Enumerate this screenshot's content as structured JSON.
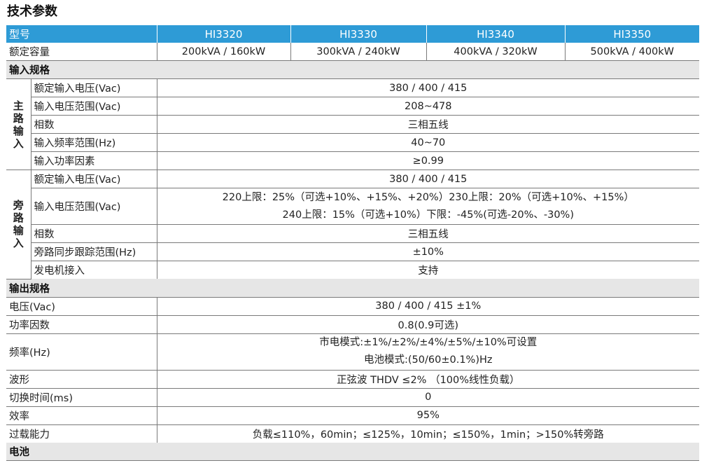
{
  "title": "技术参数",
  "header": {
    "label": "型号",
    "models": [
      "HI3320",
      "HI3330",
      "HI3340",
      "HI3350"
    ]
  },
  "capacity": {
    "label": "额定容量",
    "values": [
      "200kVA / 160kW",
      "300kVA / 240kW",
      "400kVA / 320kW",
      "500kVA / 400kW"
    ]
  },
  "input": {
    "section": "输入规格",
    "main": {
      "group": "主路输入",
      "rows": [
        {
          "label": "额定输入电压(Vac)",
          "value": "380 / 400 / 415"
        },
        {
          "label": "输入电压范围(Vac)",
          "value": "208~478"
        },
        {
          "label": "相数",
          "value": "三相五线"
        },
        {
          "label": "输入频率范围(Hz)",
          "value": "40~70"
        },
        {
          "label": "输入功率因素",
          "value": "≥0.99"
        }
      ]
    },
    "bypass": {
      "group": "旁路输入",
      "rated": {
        "label": "额定输入电压(Vac)",
        "value": "380 / 400 / 415"
      },
      "range": {
        "label": "输入电压范围(Vac)",
        "line1": "220上限：25%（可选+10%、+15%、+20%）230上限：20%（可选+10%、+15%）",
        "line2": "240上限：15%（可选+10%）下限：-45%(可选-20%、-30%)"
      },
      "phase": {
        "label": "相数",
        "value": "三相五线"
      },
      "sync": {
        "label": "旁路同步跟踪范围(Hz)",
        "value": "±10%"
      },
      "generator": {
        "label": "发电机接入",
        "value": "支持"
      }
    }
  },
  "output": {
    "section": "输出规格",
    "voltage": {
      "label": "电压(Vac)",
      "value": "380 / 400 / 415 ±1%"
    },
    "pf": {
      "label": "功率因数",
      "value": "0.8(0.9可选)"
    },
    "freq": {
      "label": "频率(Hz)",
      "line1": "市电模式:±1%/±2%/±4%/±5%/±10%可设置",
      "line2": "电池模式:(50/60±0.1%)Hz"
    },
    "wave": {
      "label": "波形",
      "value": "正弦波 THDV ≤2% （100%线性负载）"
    },
    "switch": {
      "label": "切换时间(ms)",
      "value": "0"
    },
    "eff": {
      "label": "效率",
      "value": "95%"
    },
    "overload": {
      "label": "过载能力",
      "value": "负载≤110%，60min；≤125%，10min；≤150%，1min；>150%转旁路"
    }
  },
  "battery": {
    "section": "电池"
  }
}
